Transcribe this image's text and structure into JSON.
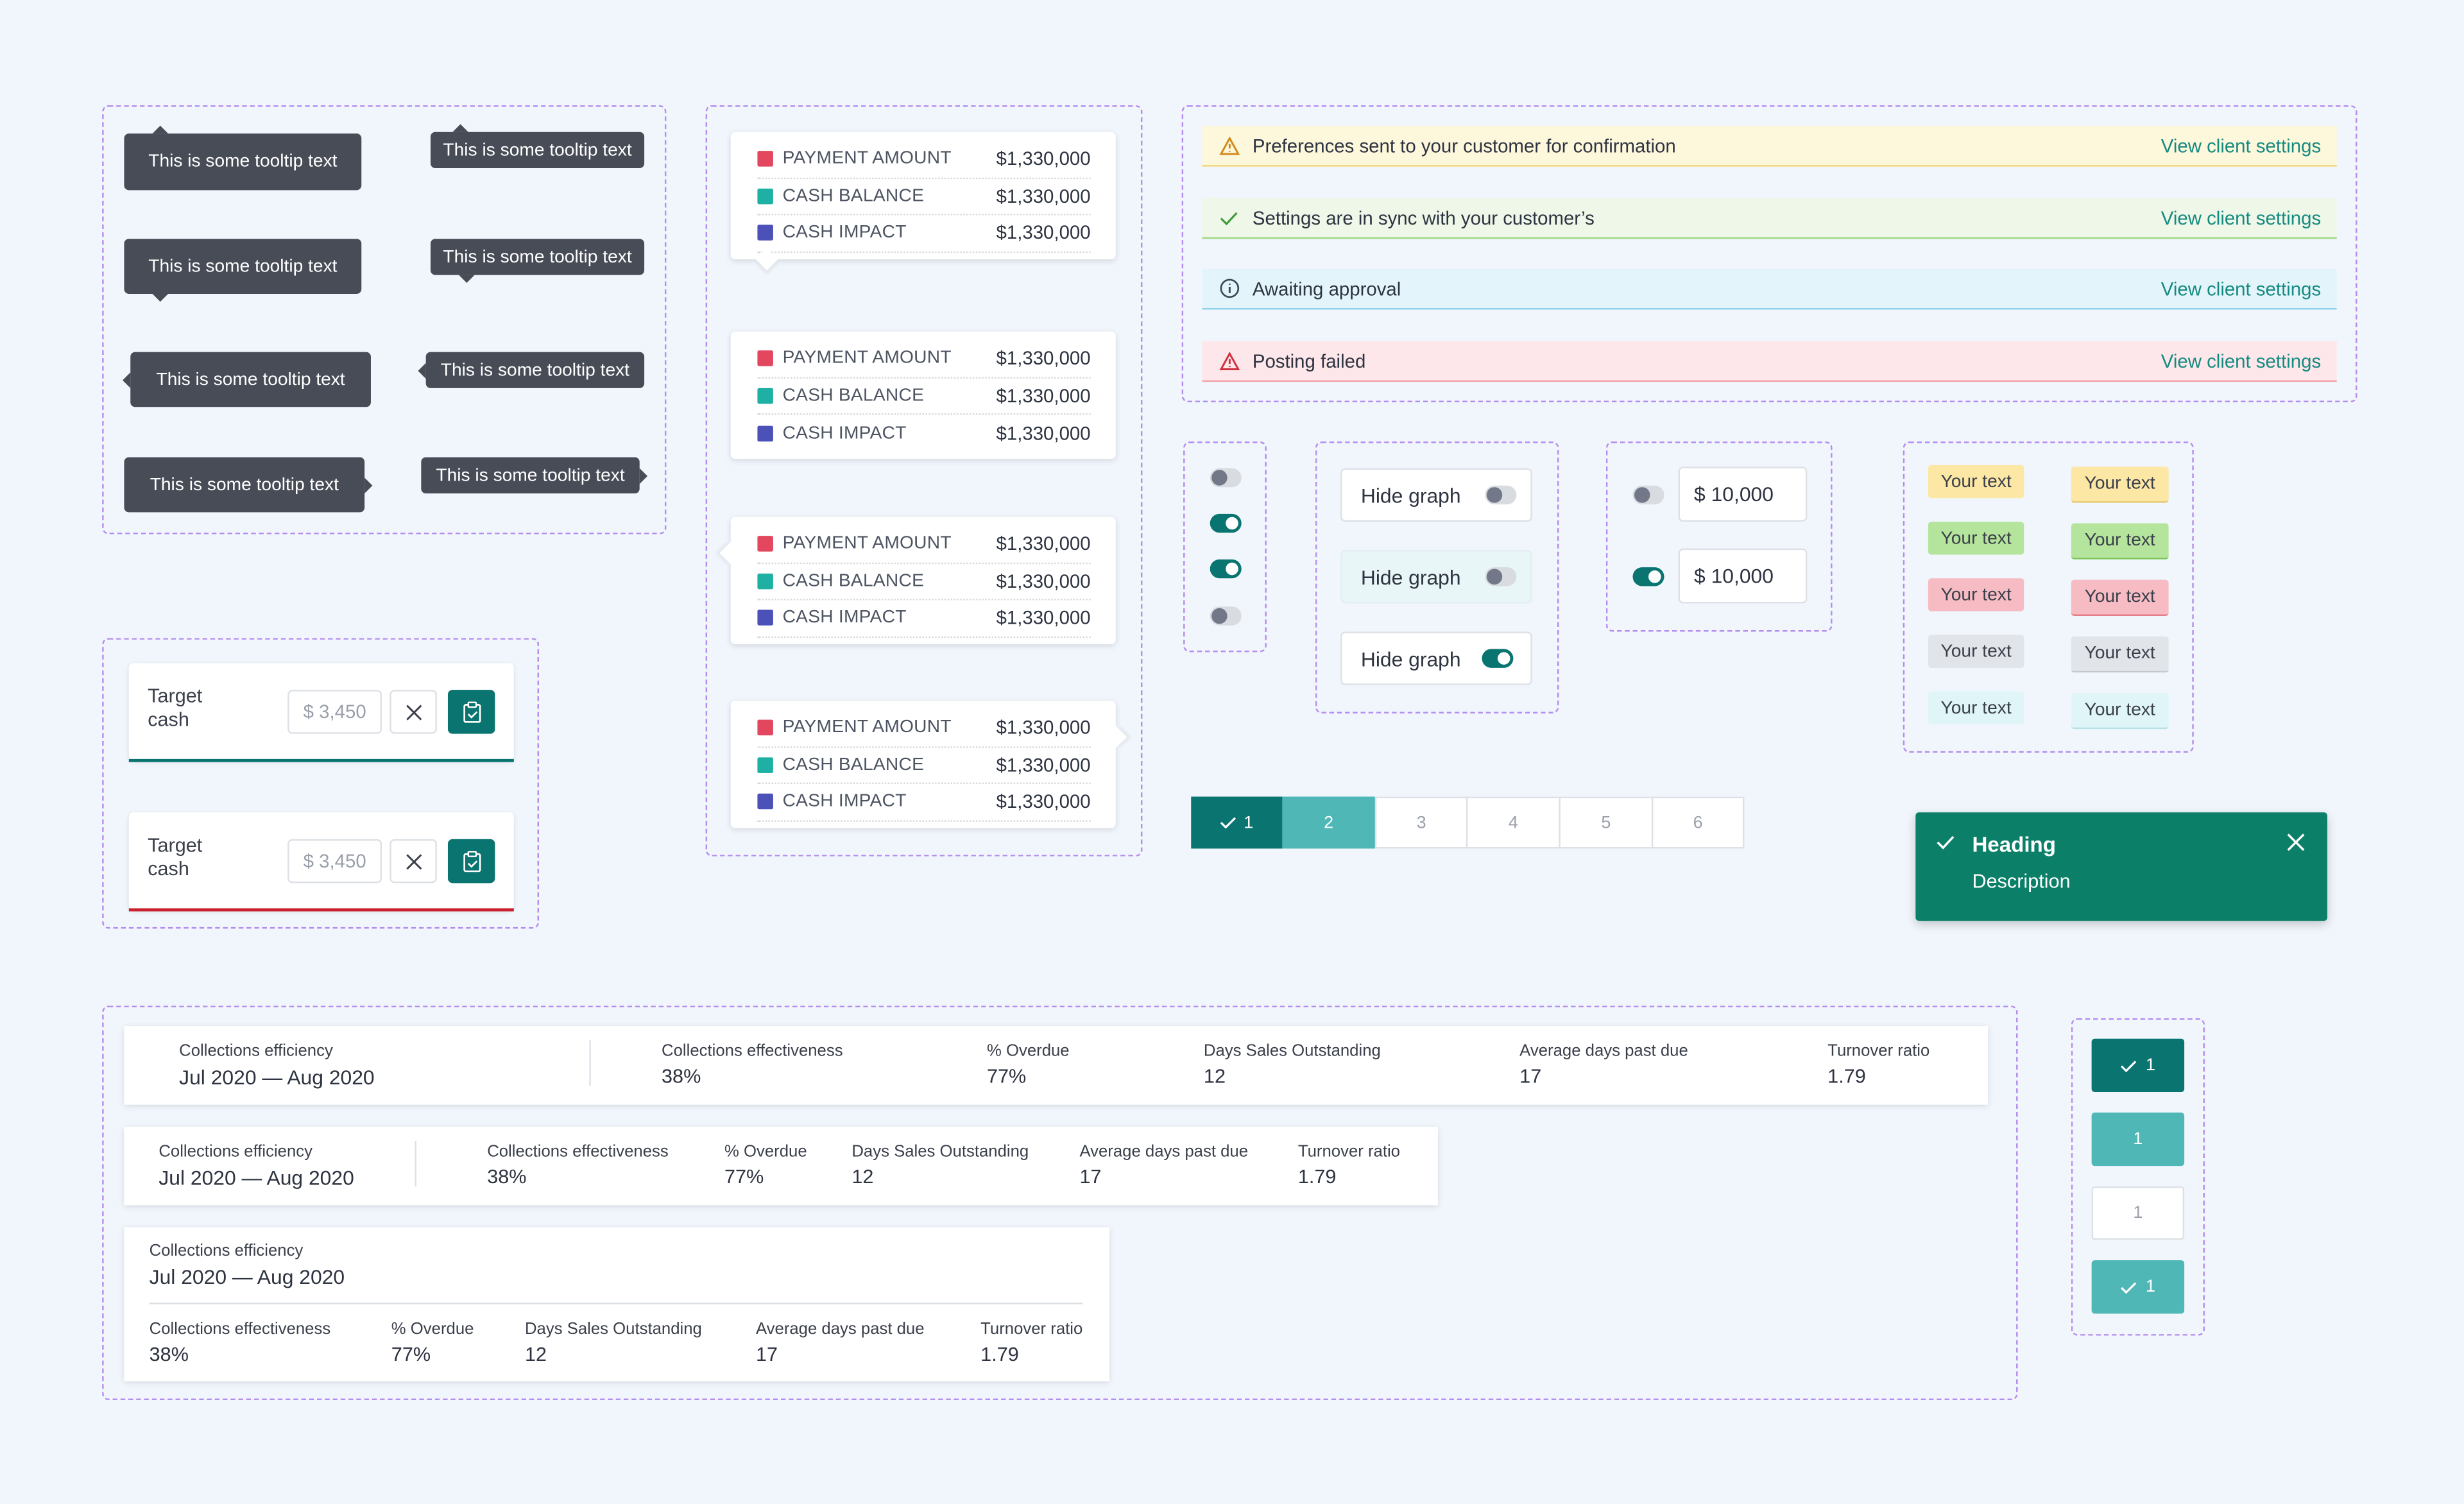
{
  "tooltips": [
    "This is some tooltip text",
    "This is some tooltip text",
    "This is some tooltip text",
    "This is some tooltip text",
    "This is some tooltip text",
    "This is some tooltip text",
    "This is some tooltip text",
    "This is some tooltip text"
  ],
  "payment_cards": [
    {
      "rows": [
        {
          "label": "PAYMENT AMOUNT",
          "value": "$1,330,000"
        },
        {
          "label": "CASH BALANCE",
          "value": "$1,330,000"
        },
        {
          "label": "CASH IMPACT",
          "value": "$1,330,000"
        }
      ]
    },
    {
      "rows": [
        {
          "label": "PAYMENT AMOUNT",
          "value": "$1,330,000"
        },
        {
          "label": "CASH BALANCE",
          "value": "$1,330,000"
        },
        {
          "label": "CASH IMPACT",
          "value": "$1,330,000"
        }
      ]
    },
    {
      "rows": [
        {
          "label": "PAYMENT AMOUNT",
          "value": "$1,330,000"
        },
        {
          "label": "CASH BALANCE",
          "value": "$1,330,000"
        },
        {
          "label": "CASH IMPACT",
          "value": "$1,330,000"
        }
      ]
    },
    {
      "rows": [
        {
          "label": "PAYMENT AMOUNT",
          "value": "$1,330,000"
        },
        {
          "label": "CASH BALANCE",
          "value": "$1,330,000"
        },
        {
          "label": "CASH IMPACT",
          "value": "$1,330,000"
        }
      ]
    }
  ],
  "swatch_colors": [
    "#e2475f",
    "#1fb0a4",
    "#4c51b8"
  ],
  "alerts": [
    {
      "text": "Preferences sent to your customer for confirmation",
      "link": "View client settings",
      "icon": "warning-icon",
      "bg": "#fdf7dc",
      "line": "#f2d77a",
      "iconColor": "#d08a1a"
    },
    {
      "text": "Settings are in sync with your customer’s",
      "link": "View client settings",
      "icon": "check-icon",
      "bg": "#eef7e8",
      "line": "#9fd784",
      "iconColor": "#3f9a3a"
    },
    {
      "text": "Awaiting approval",
      "link": "View client settings",
      "icon": "info-icon",
      "bg": "#e3f5fb",
      "line": "#8fd3ea",
      "iconColor": "#3a4a5a"
    },
    {
      "text": "Posting failed",
      "link": "View client settings",
      "icon": "warning-icon",
      "bg": "#fde7ea",
      "line": "#f2a3ad",
      "iconColor": "#d0313f"
    }
  ],
  "toggles": [
    "off",
    "on",
    "on",
    "off"
  ],
  "hide_graph": [
    {
      "label": "Hide graph",
      "state": "off"
    },
    {
      "label": "Hide graph",
      "state": "off"
    },
    {
      "label": "Hide graph",
      "state": "on"
    }
  ],
  "amount_inputs": [
    {
      "value": "$ 10,000",
      "state": "off"
    },
    {
      "value": "$ 10,000",
      "state": "on"
    }
  ],
  "tags": [
    "Your text",
    "Your text",
    "Your text",
    "Your text",
    "Your text",
    "Your text",
    "Your text",
    "Your text",
    "Your text",
    "Your text"
  ],
  "pagination": [
    "1",
    "2",
    "3",
    "4",
    "5",
    "6"
  ],
  "toast": {
    "heading": "Heading",
    "description": "Description"
  },
  "target_cash": [
    {
      "label": "Target cash",
      "placeholder": "$ 3,450",
      "underline": "#0a7470"
    },
    {
      "label": "Target cash",
      "placeholder": "$ 3,450",
      "underline": "#c9202f"
    }
  ],
  "stats": {
    "range_label": "Collections efficiency",
    "range_value": "Jul 2020 — Aug 2020",
    "items": [
      {
        "label": "Collections effectiveness",
        "value": "38%"
      },
      {
        "label": "% Overdue",
        "value": "77%"
      },
      {
        "label": "Days Sales Outstanding",
        "value": "12"
      },
      {
        "label": "Average days past due",
        "value": "17"
      },
      {
        "label": "Turnover ratio",
        "value": "1.79"
      }
    ]
  },
  "side_pager": [
    "1",
    "1",
    "1",
    "1"
  ]
}
